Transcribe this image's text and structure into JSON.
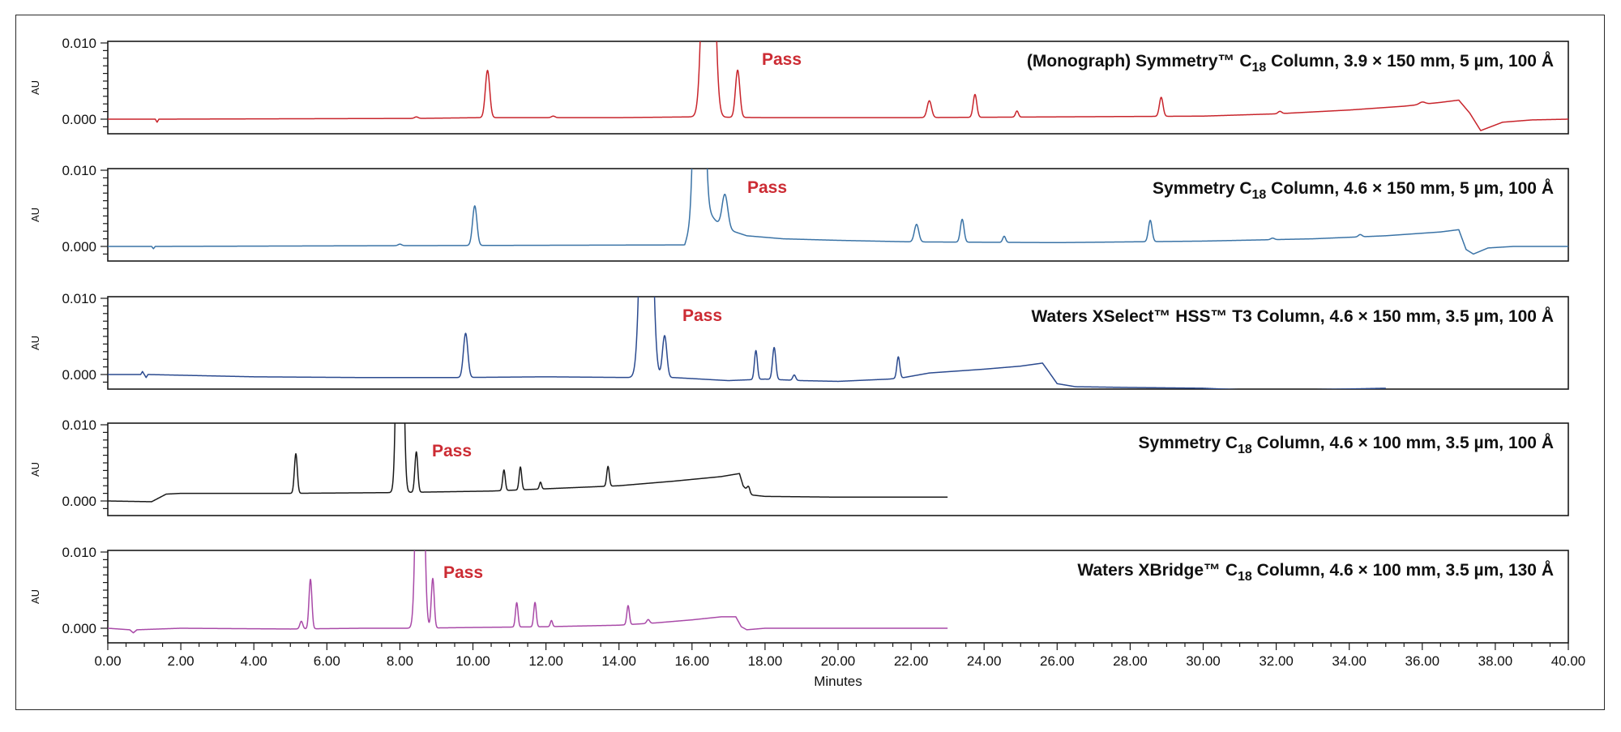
{
  "chart_data": {
    "type": "line",
    "xlabel": "Minutes",
    "xlim": [
      0,
      40
    ],
    "x_ticks": [
      "0.00",
      "2.00",
      "4.00",
      "6.00",
      "8.00",
      "10.00",
      "12.00",
      "14.00",
      "16.00",
      "18.00",
      "20.00",
      "22.00",
      "24.00",
      "26.00",
      "28.00",
      "30.00",
      "32.00",
      "34.00",
      "36.00",
      "38.00",
      "40.00"
    ],
    "ylim": [
      -0.002,
      0.01
    ],
    "y_ticks": [
      "0.010",
      "0.000"
    ],
    "ylabel": "AU",
    "panels": [
      {
        "title_prefix": "(Monograph) Symmetry™ C",
        "title_sub": "18",
        "title_suffix": " Column, 3.9 × 150 mm, 5 µm, 100 Å",
        "annotation": "Pass",
        "color": "#c8242b",
        "x_end": 40,
        "baseline": [
          [
            0,
            0
          ],
          [
            1.3,
            0
          ],
          [
            1.35,
            -0.0004
          ],
          [
            1.4,
            0
          ],
          [
            8.5,
            0.0001
          ],
          [
            10.2,
            0.0002
          ],
          [
            14,
            0.0002
          ],
          [
            16.0,
            0.0003
          ],
          [
            18,
            0.0002
          ],
          [
            22,
            0.0002
          ],
          [
            26,
            0.0003
          ],
          [
            30,
            0.0004
          ],
          [
            32,
            0.0007
          ],
          [
            34,
            0.0012
          ],
          [
            35.5,
            0.0017
          ],
          [
            36.5,
            0.0022
          ],
          [
            37.0,
            0.0025
          ],
          [
            37.3,
            0.0008
          ],
          [
            37.6,
            -0.0015
          ],
          [
            38.2,
            -0.0004
          ],
          [
            39,
            -0.0001
          ],
          [
            40,
            0
          ]
        ],
        "peaks": [
          {
            "x": 8.45,
            "h": 0.0002,
            "w": 0.05
          },
          {
            "x": 10.4,
            "h": 0.0062,
            "w": 0.06
          },
          {
            "x": 12.2,
            "h": 0.0002,
            "w": 0.05
          },
          {
            "x": 16.45,
            "h": 0.06,
            "w": 0.12
          },
          {
            "x": 17.25,
            "h": 0.0062,
            "w": 0.06
          },
          {
            "x": 22.5,
            "h": 0.0022,
            "w": 0.06
          },
          {
            "x": 23.75,
            "h": 0.003,
            "w": 0.05
          },
          {
            "x": 24.9,
            "h": 0.0008,
            "w": 0.04
          },
          {
            "x": 28.85,
            "h": 0.0025,
            "w": 0.05
          },
          {
            "x": 32.1,
            "h": 0.0003,
            "w": 0.05
          },
          {
            "x": 36.0,
            "h": 0.0003,
            "w": 0.08
          }
        ]
      },
      {
        "title_prefix": "Symmetry C",
        "title_sub": "18",
        "title_suffix": " Column, 4.6 × 150 mm, 5 µm, 100 Å",
        "annotation": "Pass",
        "color": "#3a73a6",
        "x_end": 40,
        "baseline": [
          [
            0,
            0
          ],
          [
            1.2,
            0
          ],
          [
            1.25,
            -0.0003
          ],
          [
            1.3,
            0
          ],
          [
            8,
            0.0001
          ],
          [
            15.8,
            0.0002
          ],
          [
            16.2,
            0.006
          ],
          [
            16.8,
            0.0025
          ],
          [
            17.5,
            0.0014
          ],
          [
            18.5,
            0.001
          ],
          [
            20,
            0.0008
          ],
          [
            22,
            0.0006
          ],
          [
            26,
            0.0005
          ],
          [
            30,
            0.0007
          ],
          [
            33,
            0.001
          ],
          [
            35,
            0.0014
          ],
          [
            36.5,
            0.0019
          ],
          [
            37.0,
            0.0022
          ],
          [
            37.2,
            -0.0004
          ],
          [
            37.4,
            -0.001
          ],
          [
            37.8,
            -0.0002
          ],
          [
            38.5,
            0
          ],
          [
            40,
            0
          ]
        ],
        "peaks": [
          {
            "x": 8.0,
            "h": 0.0002,
            "w": 0.05
          },
          {
            "x": 10.05,
            "h": 0.0052,
            "w": 0.06
          },
          {
            "x": 16.2,
            "h": 0.06,
            "w": 0.1
          },
          {
            "x": 16.9,
            "h": 0.0045,
            "w": 0.08
          },
          {
            "x": 22.15,
            "h": 0.0023,
            "w": 0.06
          },
          {
            "x": 23.4,
            "h": 0.003,
            "w": 0.05
          },
          {
            "x": 24.55,
            "h": 0.0008,
            "w": 0.04
          },
          {
            "x": 28.55,
            "h": 0.0028,
            "w": 0.05
          },
          {
            "x": 31.9,
            "h": 0.0002,
            "w": 0.05
          },
          {
            "x": 34.3,
            "h": 0.0003,
            "w": 0.05
          }
        ]
      },
      {
        "title_prefix": "Waters XSelect™ HSS™ T3 Column, 4.6 × 150 mm, 3.5 µm, 100 Å",
        "title_sub": "",
        "title_suffix": "",
        "annotation": "Pass",
        "color": "#2b4a8f",
        "x_end": 35,
        "baseline": [
          [
            0,
            0
          ],
          [
            0.9,
            0
          ],
          [
            0.95,
            0.0004
          ],
          [
            1.0,
            0
          ],
          [
            1.05,
            -0.0004
          ],
          [
            1.1,
            0
          ],
          [
            4,
            -0.0003
          ],
          [
            7,
            -0.0004
          ],
          [
            9.5,
            -0.0004
          ],
          [
            12,
            -0.0003
          ],
          [
            14.4,
            -0.0004
          ],
          [
            15.5,
            -0.0004
          ],
          [
            17.0,
            -0.0008
          ],
          [
            18,
            -0.0006
          ],
          [
            19,
            -0.0008
          ],
          [
            20,
            -0.0009
          ],
          [
            21.4,
            -0.0006
          ],
          [
            21.8,
            -0.0004
          ],
          [
            22.5,
            0.0002
          ],
          [
            24,
            0.0007
          ],
          [
            25,
            0.0011
          ],
          [
            25.6,
            0.0015
          ],
          [
            25.75,
            0.0005
          ],
          [
            26.0,
            -0.0012
          ],
          [
            26.5,
            -0.0016
          ],
          [
            28,
            -0.0017
          ],
          [
            30,
            -0.0018
          ],
          [
            31,
            -0.002
          ],
          [
            32,
            -0.002
          ],
          [
            33,
            -0.002
          ],
          [
            34,
            -0.0019
          ],
          [
            35,
            -0.0018
          ]
        ],
        "peaks": [
          {
            "x": 9.8,
            "h": 0.0058,
            "w": 0.06
          },
          {
            "x": 14.75,
            "h": 0.06,
            "w": 0.12
          },
          {
            "x": 15.25,
            "h": 0.0055,
            "w": 0.06
          },
          {
            "x": 17.75,
            "h": 0.0038,
            "w": 0.04
          },
          {
            "x": 18.25,
            "h": 0.0042,
            "w": 0.045
          },
          {
            "x": 18.8,
            "h": 0.0007,
            "w": 0.04
          },
          {
            "x": 21.65,
            "h": 0.0028,
            "w": 0.04
          }
        ]
      },
      {
        "title_prefix": "Symmetry C",
        "title_sub": "18",
        "title_suffix": " Column, 4.6 × 100 mm, 3.5 µm, 100 Å",
        "annotation": "Pass",
        "color": "#1a1a1a",
        "x_end": 23,
        "baseline": [
          [
            0,
            0
          ],
          [
            1.2,
            -0.0001
          ],
          [
            1.4,
            0.0004
          ],
          [
            1.6,
            0.0009
          ],
          [
            2,
            0.001
          ],
          [
            5,
            0.001
          ],
          [
            7.8,
            0.0011
          ],
          [
            10.5,
            0.0013
          ],
          [
            12,
            0.0016
          ],
          [
            14,
            0.002
          ],
          [
            15.5,
            0.0026
          ],
          [
            16.8,
            0.0032
          ],
          [
            17.3,
            0.0036
          ],
          [
            17.4,
            0.002
          ],
          [
            17.6,
            0.0008
          ],
          [
            18,
            0.0006
          ],
          [
            20,
            0.0005
          ],
          [
            23,
            0.0005
          ]
        ],
        "peaks": [
          {
            "x": 5.15,
            "h": 0.0052,
            "w": 0.04
          },
          {
            "x": 8.0,
            "h": 0.06,
            "w": 0.07
          },
          {
            "x": 8.45,
            "h": 0.0053,
            "w": 0.04
          },
          {
            "x": 10.85,
            "h": 0.0027,
            "w": 0.035
          },
          {
            "x": 11.3,
            "h": 0.003,
            "w": 0.035
          },
          {
            "x": 11.85,
            "h": 0.0009,
            "w": 0.03
          },
          {
            "x": 13.7,
            "h": 0.0026,
            "w": 0.035
          },
          {
            "x": 17.55,
            "h": 0.0008,
            "w": 0.04
          }
        ]
      },
      {
        "title_prefix": "Waters XBridge™ C",
        "title_sub": "18",
        "title_suffix": " Column, 4.6 × 100 mm, 3.5 µm, 130 Å",
        "annotation": "Pass",
        "color": "#a94aa8",
        "x_end": 23,
        "baseline": [
          [
            0,
            0
          ],
          [
            0.6,
            -0.0002
          ],
          [
            0.7,
            -0.0006
          ],
          [
            0.8,
            -0.0002
          ],
          [
            2,
            0
          ],
          [
            5,
            -0.0001
          ],
          [
            7,
            0
          ],
          [
            8.3,
            0
          ],
          [
            10,
            0.0001
          ],
          [
            12,
            0.0002
          ],
          [
            14,
            0.0004
          ],
          [
            15,
            0.0007
          ],
          [
            16,
            0.0011
          ],
          [
            16.8,
            0.0015
          ],
          [
            17.2,
            0.0015
          ],
          [
            17.35,
            0.0002
          ],
          [
            17.5,
            -0.0002
          ],
          [
            18,
            0
          ],
          [
            23,
            0
          ]
        ],
        "peaks": [
          {
            "x": 5.3,
            "h": 0.001,
            "w": 0.04
          },
          {
            "x": 5.55,
            "h": 0.0065,
            "w": 0.04
          },
          {
            "x": 8.55,
            "h": 0.06,
            "w": 0.08
          },
          {
            "x": 8.9,
            "h": 0.0065,
            "w": 0.04
          },
          {
            "x": 11.2,
            "h": 0.0032,
            "w": 0.035
          },
          {
            "x": 11.7,
            "h": 0.0032,
            "w": 0.035
          },
          {
            "x": 12.15,
            "h": 0.0008,
            "w": 0.03
          },
          {
            "x": 14.25,
            "h": 0.0025,
            "w": 0.035
          },
          {
            "x": 14.8,
            "h": 0.0005,
            "w": 0.04
          }
        ]
      }
    ]
  }
}
